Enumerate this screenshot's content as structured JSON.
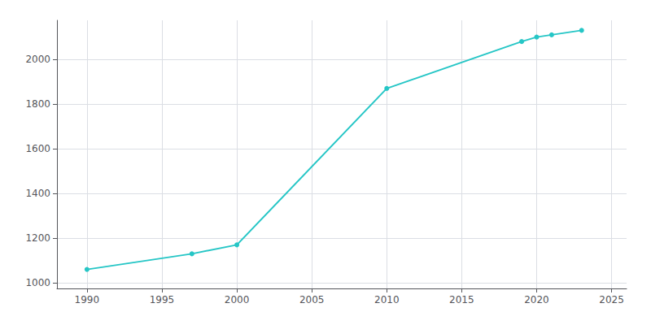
{
  "chart_data": {
    "type": "line",
    "x": [
      1990,
      1997,
      2000,
      2010,
      2019,
      2020,
      2021,
      2023
    ],
    "values": [
      1060,
      1130,
      1170,
      1870,
      2080,
      2100,
      2110,
      2130
    ],
    "color": "#26C6C6",
    "marker": "circle",
    "xlim": [
      1988,
      2026
    ],
    "ylim": [
      975,
      2175
    ],
    "xticks": [
      1990,
      1995,
      2000,
      2005,
      2010,
      2015,
      2020,
      2025
    ],
    "yticks": [
      1000,
      1200,
      1400,
      1600,
      1800,
      2000
    ],
    "grid": true
  }
}
